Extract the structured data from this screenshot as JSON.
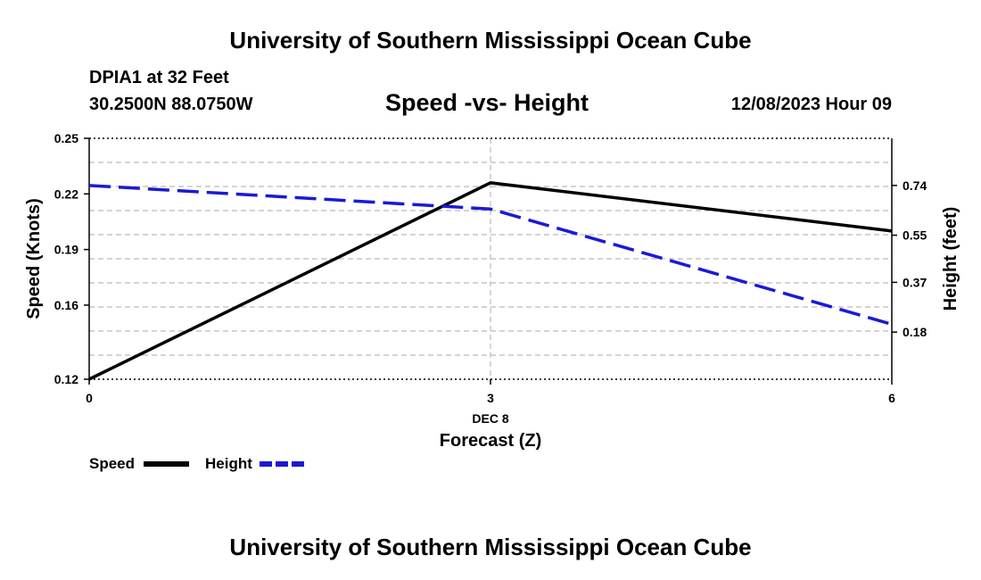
{
  "header": {
    "title": "University of Southern Mississippi Ocean Cube",
    "station": "DPIA1 at 32 Feet",
    "coordinates": "30.2500N  88.0750W",
    "subtitle": "Speed -vs- Height",
    "datetime": "12/08/2023 Hour 09"
  },
  "footer": {
    "title": "University of Southern Mississippi Ocean Cube"
  },
  "colors": {
    "speed": "#000000",
    "height": "#1a1ad6",
    "grid": "#bbbbbb"
  },
  "chart_data": {
    "type": "line",
    "title": "Speed -vs- Height",
    "x": [
      0,
      3,
      6
    ],
    "x_tick_labels": [
      "0",
      "3",
      "6"
    ],
    "x_date_label": "DEC 8",
    "xlabel": "Forecast (Z)",
    "xlim": [
      0,
      6
    ],
    "ylabel": "Speed (Knots)",
    "ylim": [
      0.12,
      0.25
    ],
    "y_ticks": [
      0.12,
      0.16,
      0.19,
      0.22,
      0.25
    ],
    "y_tick_labels": [
      "0.12",
      "0.16",
      "0.19",
      "0.22",
      "0.25"
    ],
    "y2label": "Height (feet)",
    "y2lim": [
      0.0,
      0.92
    ],
    "y2_ticks": [
      0.18,
      0.37,
      0.55,
      0.74
    ],
    "y2_tick_labels": [
      "0.18",
      "0.37",
      "0.55",
      "0.74"
    ],
    "grid": true,
    "legend_position": "bottom-left",
    "series": [
      {
        "name": "Speed",
        "axis": "left",
        "style": "solid",
        "values": [
          0.12,
          0.226,
          0.2
        ]
      },
      {
        "name": "Height",
        "axis": "right",
        "style": "dashed",
        "values": [
          0.74,
          0.65,
          0.21
        ]
      }
    ]
  }
}
